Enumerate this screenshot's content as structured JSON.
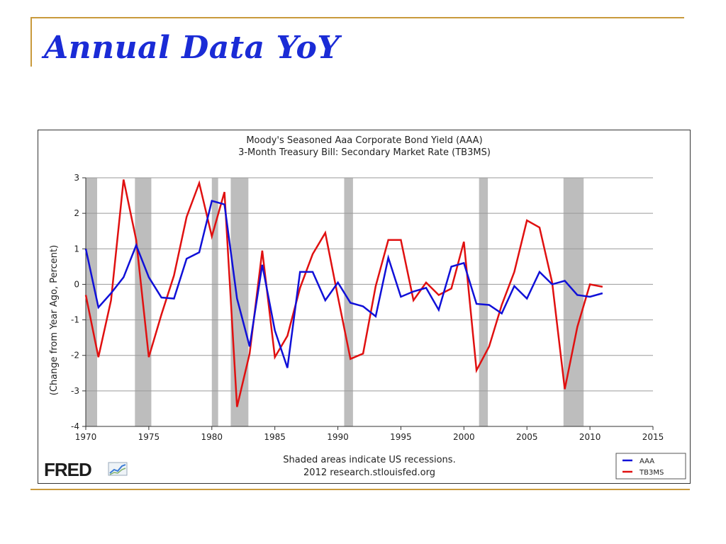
{
  "slide": {
    "title": "Annual Data YoY"
  },
  "brand": {
    "logo_text": "FRED",
    "logo_mark": "fred-chart-icon"
  },
  "colors": {
    "accent_rule": "#c99a3c",
    "title": "#1a2bd6",
    "aaa": "#1010d8",
    "tb3ms": "#e01010",
    "recession": "#bdbdbd"
  },
  "chart_data": {
    "type": "line",
    "title": "Moody's Seasoned Aaa Corporate Bond Yield (AAA)",
    "subtitle": "3-Month Treasury Bill: Secondary Market Rate (TB3MS)",
    "xlabel": "",
    "ylabel": "(Change from Year Ago, Percent)",
    "xlim": [
      1970,
      2015
    ],
    "ylim": [
      -4,
      3
    ],
    "grid": true,
    "legend_position": "bottom-right",
    "x_ticks": [
      "1970",
      "1975",
      "1980",
      "1985",
      "1990",
      "1995",
      "2000",
      "2005",
      "2010",
      "2015"
    ],
    "y_ticks": [
      "3",
      "2",
      "1",
      "0",
      "-1",
      "-2",
      "-3",
      "-4"
    ],
    "recessions": [
      [
        1970.0,
        1970.9
      ],
      [
        1973.9,
        1975.2
      ],
      [
        1980.0,
        1980.5
      ],
      [
        1981.5,
        1982.9
      ],
      [
        1990.5,
        1991.2
      ],
      [
        2001.2,
        2001.9
      ],
      [
        2007.9,
        2009.5
      ]
    ],
    "x": [
      1970,
      1971,
      1972,
      1973,
      1974,
      1975,
      1976,
      1977,
      1978,
      1979,
      1980,
      1981,
      1982,
      1983,
      1984,
      1985,
      1986,
      1987,
      1988,
      1989,
      1990,
      1991,
      1992,
      1993,
      1994,
      1995,
      1996,
      1997,
      1998,
      1999,
      2000,
      2001,
      2002,
      2003,
      2004,
      2005,
      2006,
      2007,
      2008,
      2009,
      2010,
      2011
    ],
    "series": [
      {
        "name": "AAA",
        "values": [
          1.0,
          -0.65,
          -0.25,
          0.2,
          1.1,
          0.2,
          -0.37,
          -0.4,
          0.72,
          0.9,
          2.35,
          2.25,
          -0.4,
          -1.75,
          0.55,
          -1.3,
          -2.35,
          0.35,
          0.35,
          -0.45,
          0.05,
          -0.52,
          -0.62,
          -0.9,
          0.75,
          -0.35,
          -0.2,
          -0.1,
          -0.72,
          0.5,
          0.6,
          -0.55,
          -0.58,
          -0.82,
          -0.05,
          -0.4,
          0.35,
          0.0,
          0.1,
          -0.3,
          -0.35,
          -0.25
        ]
      },
      {
        "name": "TB3MS",
        "values": [
          -0.3,
          -2.05,
          -0.45,
          2.95,
          1.25,
          -2.05,
          -0.85,
          0.25,
          1.9,
          2.85,
          1.35,
          2.6,
          -3.45,
          -1.95,
          0.95,
          -2.05,
          -1.45,
          -0.1,
          0.85,
          1.45,
          -0.35,
          -2.1,
          -1.95,
          -0.05,
          1.25,
          1.25,
          -0.45,
          0.05,
          -0.3,
          -0.12,
          1.2,
          -2.42,
          -1.75,
          -0.58,
          0.35,
          1.8,
          1.6,
          0.05,
          -2.95,
          -1.2,
          0.0,
          -0.07
        ]
      }
    ],
    "note_line1": "Shaded areas indicate US recessions.",
    "note_line2": "2012 research.stlouisfed.org"
  }
}
